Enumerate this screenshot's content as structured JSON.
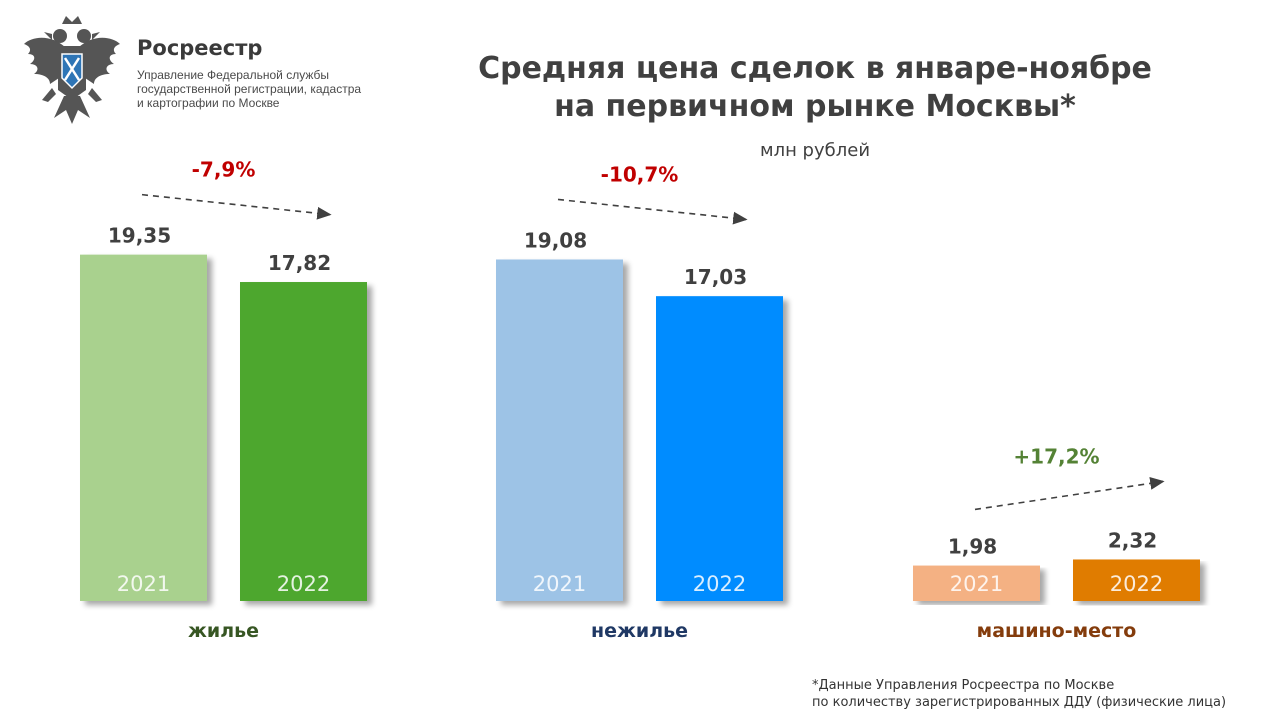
{
  "header": {
    "org_name": "Росреестр",
    "org_sub": "Управление Федеральной службы государственной регистрации, кадастра и картографии по Москве",
    "logo_icon": "eagle-emblem-icon"
  },
  "chart_data": {
    "type": "bar",
    "title_line1": "Средняя цена сделок в январе-ноябре",
    "title_line2": "на первичном рынке Москвы*",
    "ylabel": "млн рублей",
    "ylim": [
      0,
      20
    ],
    "groups": [
      {
        "label": "жилье",
        "label_color": "#375623",
        "change": "-7,9%",
        "change_color": "#c00000",
        "bars": [
          {
            "year": "2021",
            "value": 19.35,
            "value_label": "19,35",
            "color": "#a9d18e"
          },
          {
            "year": "2022",
            "value": 17.82,
            "value_label": "17,82",
            "color": "#4ea72e"
          }
        ]
      },
      {
        "label": "нежилье",
        "label_color": "#1f3864",
        "change": "-10,7%",
        "change_color": "#c00000",
        "bars": [
          {
            "year": "2021",
            "value": 19.08,
            "value_label": "19,08",
            "color": "#9dc3e6"
          },
          {
            "year": "2022",
            "value": 17.03,
            "value_label": "17,03",
            "color": "#008cff"
          }
        ]
      },
      {
        "label": "машино-место",
        "label_color": "#843c0c",
        "change": "+17,2%",
        "change_color": "#548235",
        "bars": [
          {
            "year": "2021",
            "value": 1.98,
            "value_label": "1,98",
            "color": "#f4b183"
          },
          {
            "year": "2022",
            "value": 2.32,
            "value_label": "2,32",
            "color": "#e07b00"
          }
        ]
      }
    ]
  },
  "footnote": {
    "line1": "*Данные Управления Росреестра по Москве",
    "line2": "по количеству зарегистрированных ДДУ (физические лица)"
  }
}
